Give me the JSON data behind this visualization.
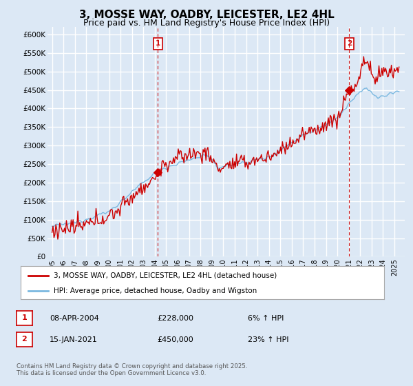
{
  "title": "3, MOSSE WAY, OADBY, LEICESTER, LE2 4HL",
  "subtitle": "Price paid vs. HM Land Registry's House Price Index (HPI)",
  "ylim": [
    0,
    620000
  ],
  "yticks": [
    0,
    50000,
    100000,
    150000,
    200000,
    250000,
    300000,
    350000,
    400000,
    450000,
    500000,
    550000,
    600000
  ],
  "ytick_labels": [
    "£0",
    "£50K",
    "£100K",
    "£150K",
    "£200K",
    "£250K",
    "£300K",
    "£350K",
    "£400K",
    "£450K",
    "£500K",
    "£550K",
    "£600K"
  ],
  "hpi_color": "#7ab8e0",
  "price_color": "#cc0000",
  "vline_color": "#cc0000",
  "sale1_date_num": 2004.27,
  "sale1_price": 228000,
  "sale2_date_num": 2021.04,
  "sale2_price": 450000,
  "legend_line1": "3, MOSSE WAY, OADBY, LEICESTER, LE2 4HL (detached house)",
  "legend_line2": "HPI: Average price, detached house, Oadby and Wigston",
  "footer": "Contains HM Land Registry data © Crown copyright and database right 2025.\nThis data is licensed under the Open Government Licence v3.0.",
  "background_color": "#dce8f5",
  "plot_bg_color": "#dce8f5",
  "grid_color": "#ffffff",
  "title_fontsize": 11,
  "subtitle_fontsize": 9
}
